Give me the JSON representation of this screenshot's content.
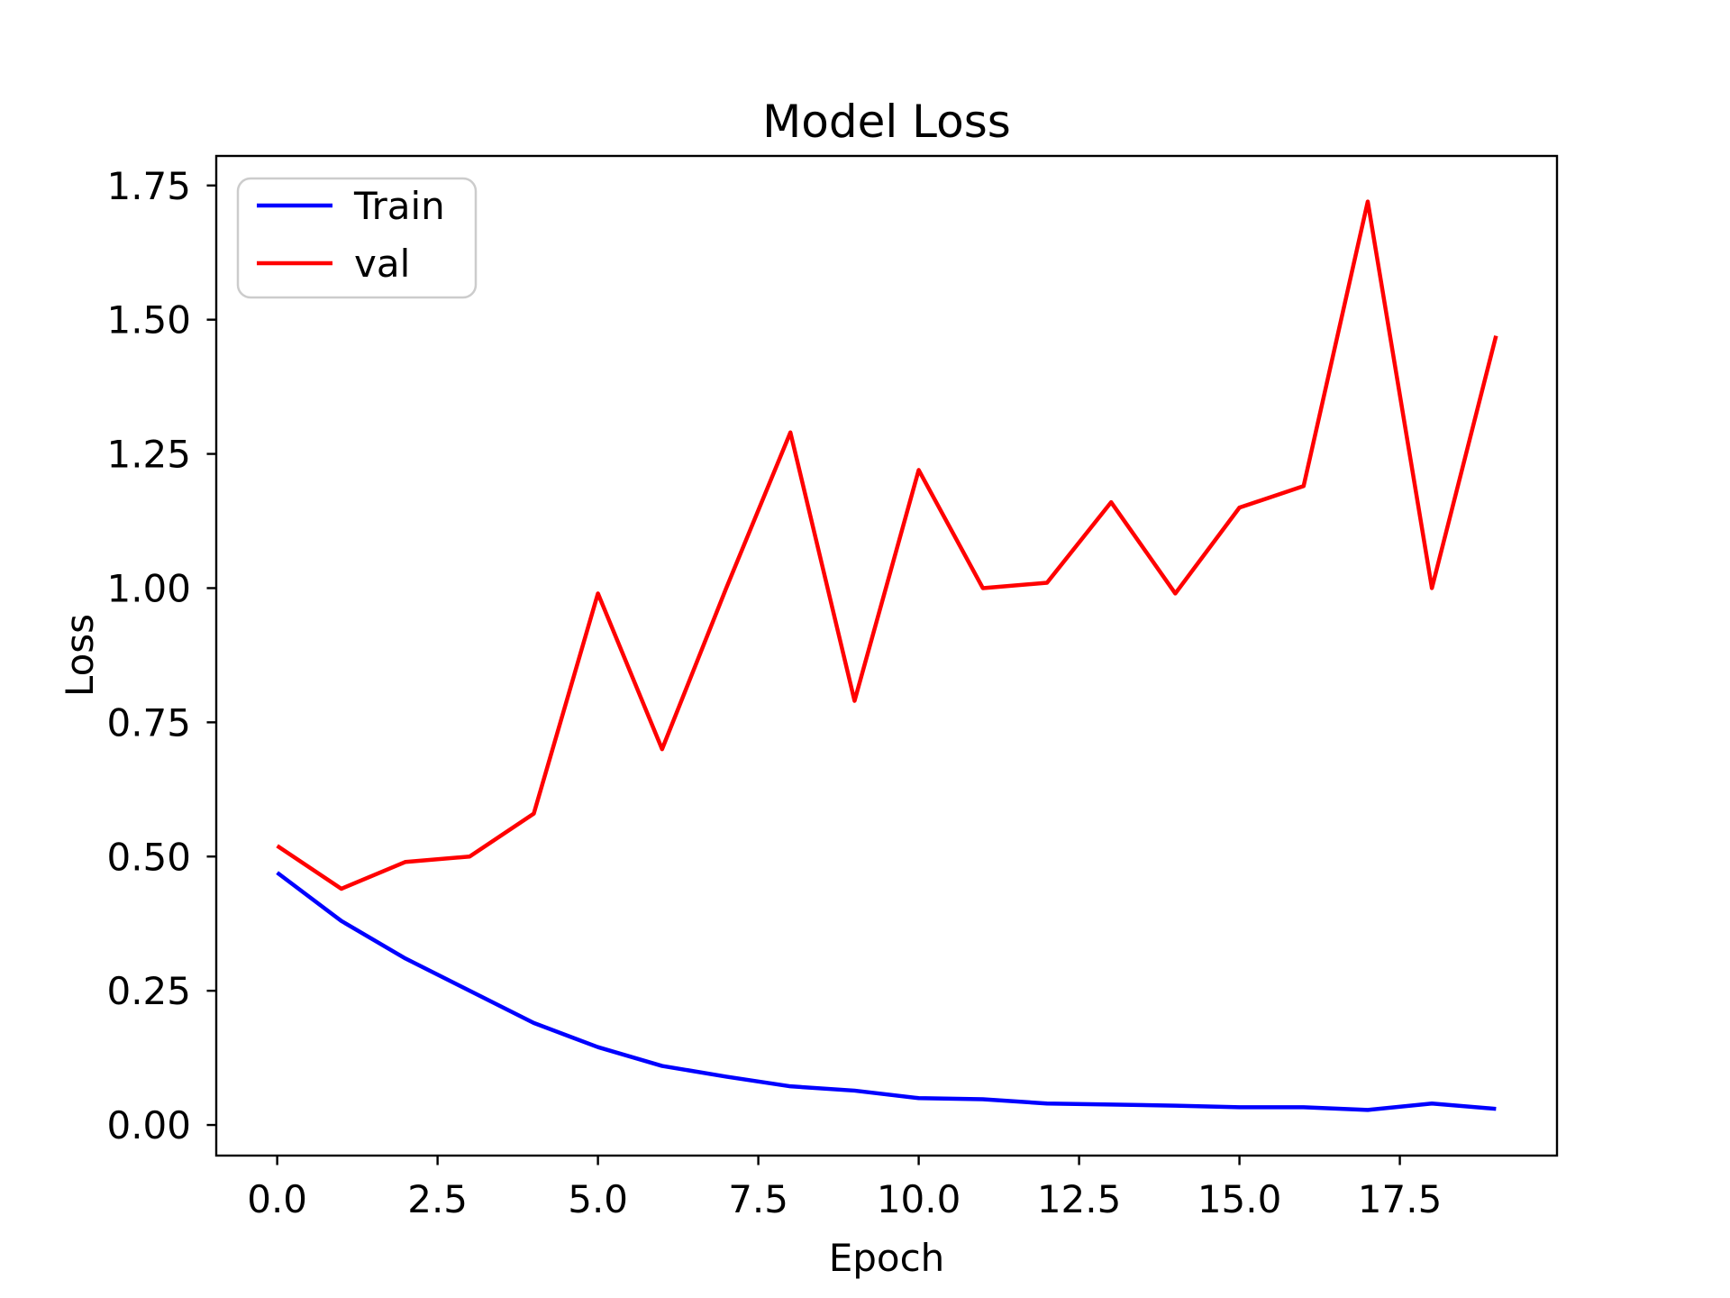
{
  "figure": {
    "title": "Model Loss",
    "xlabel": "Epoch",
    "ylabel": "Loss"
  },
  "legend": {
    "entries": [
      {
        "label": "Train",
        "color": "#0000ff"
      },
      {
        "label": "val",
        "color": "#ff0000"
      }
    ],
    "position": "upper-left",
    "border_color": "#cccccc"
  },
  "chart_data": {
    "type": "line",
    "title": "Model Loss",
    "xlabel": "Epoch",
    "ylabel": "Loss",
    "grid": false,
    "legend_position": "upper-left",
    "x": [
      0,
      1,
      2,
      3,
      4,
      5,
      6,
      7,
      8,
      9,
      10,
      11,
      12,
      13,
      14,
      15,
      16,
      17,
      18,
      19
    ],
    "series": [
      {
        "name": "Train",
        "color": "#0000ff",
        "values": [
          0.47,
          0.38,
          0.31,
          0.25,
          0.19,
          0.145,
          0.11,
          0.09,
          0.072,
          0.064,
          0.05,
          0.048,
          0.04,
          0.038,
          0.036,
          0.033,
          0.033,
          0.028,
          0.04,
          0.03
        ]
      },
      {
        "name": "val",
        "color": "#ff0000",
        "values": [
          0.52,
          0.44,
          0.49,
          0.5,
          0.58,
          0.99,
          0.7,
          1.0,
          1.29,
          0.79,
          1.22,
          1.0,
          1.01,
          1.16,
          0.99,
          1.15,
          1.19,
          1.72,
          1.0,
          1.47
        ]
      }
    ],
    "x_ticks": [
      0,
      2.5,
      5,
      7.5,
      10,
      12.5,
      15,
      17.5
    ],
    "x_tick_labels": [
      "0.0",
      "2.5",
      "5.0",
      "7.5",
      "10.0",
      "12.5",
      "15.0",
      "17.5"
    ],
    "y_ticks": [
      0,
      0.25,
      0.5,
      0.75,
      1.0,
      1.25,
      1.5,
      1.75
    ],
    "y_tick_labels": [
      "0.00",
      "0.25",
      "0.50",
      "0.75",
      "1.00",
      "1.25",
      "1.50",
      "1.75"
    ],
    "xlim": [
      -0.95,
      19.95
    ],
    "ylim": [
      -0.057,
      1.805
    ],
    "line_width": 4.5,
    "colors": {
      "axes": "#000000",
      "text": "#000000",
      "background": "#ffffff",
      "legend_border": "#cccccc"
    }
  }
}
